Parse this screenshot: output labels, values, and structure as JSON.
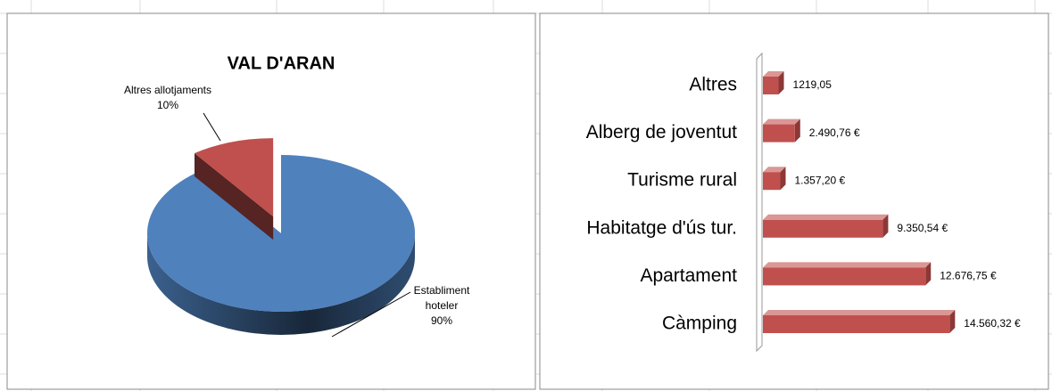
{
  "chart_data": [
    {
      "type": "pie",
      "title": "VAL D'ARAN",
      "categories": [
        "Establiment hoteler",
        "Altres allotjaments"
      ],
      "values": [
        90,
        10
      ],
      "value_labels": [
        "90%",
        "10%"
      ],
      "colors": [
        "#4f81bd",
        "#c0504d"
      ]
    },
    {
      "type": "bar",
      "orientation": "horizontal",
      "categories": [
        "Altres",
        "Alberg de joventut",
        "Turisme rural",
        "Habitatge d'ús tur.",
        "Apartament",
        "Càmping"
      ],
      "values": [
        1219.05,
        2490.76,
        1357.2,
        9350.54,
        12676.75,
        14560.32
      ],
      "value_labels": [
        "1219,05",
        "2.490,76 €",
        "1.357,20 €",
        "9.350,54 €",
        "12.676,75 €",
        "14.560,32 €"
      ],
      "color": "#c0504d",
      "xlim": [
        0,
        16000
      ]
    }
  ]
}
